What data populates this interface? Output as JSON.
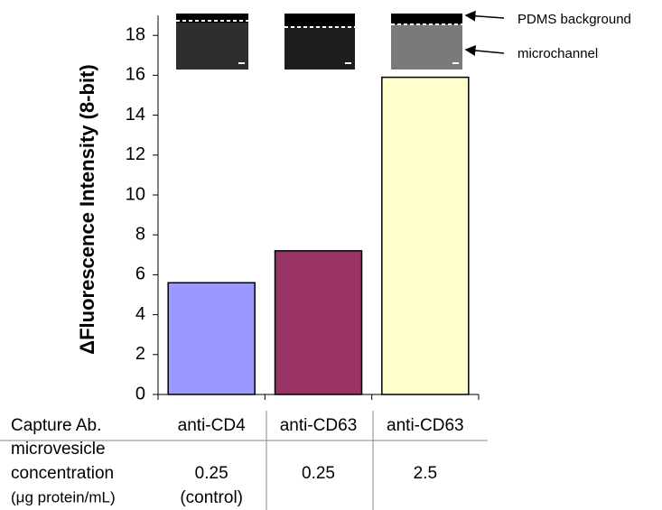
{
  "chart_data": {
    "type": "bar",
    "y_label": "ΔFluorescence Intensity (8-bit)",
    "categories": [
      "anti-CD4",
      "anti-CD63",
      "anti-CD63"
    ],
    "values": [
      5.6,
      7.2,
      15.9
    ],
    "colors": [
      "#9999ff",
      "#993366",
      "#ffffcc"
    ],
    "ylim": [
      0,
      19
    ],
    "yticks": [
      0,
      2,
      4,
      6,
      8,
      10,
      12,
      14,
      16,
      18
    ],
    "grid": false,
    "annotations": [
      "PDMS background",
      "microchannel"
    ]
  },
  "table": {
    "row_labels": [
      [
        "Capture Ab."
      ],
      [
        "microvesicle",
        "concentration",
        "(μg protein/mL)"
      ]
    ],
    "concentration": [
      [
        "0.25",
        "(control)"
      ],
      [
        "0.25"
      ],
      [
        "2.5"
      ]
    ]
  }
}
